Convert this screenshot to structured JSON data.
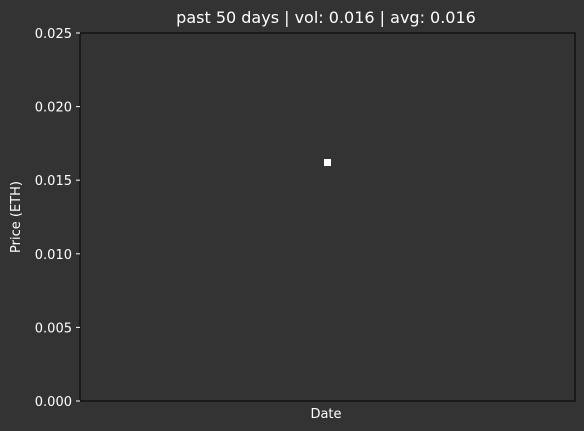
{
  "chart_data": {
    "type": "scatter",
    "title": "past 50 days | vol: 0.016 | avg: 0.016",
    "xlabel": "Date",
    "ylabel": "Price (ETH)",
    "ylim": [
      0,
      0.025
    ],
    "yticks": [
      "0.000",
      "0.005",
      "0.010",
      "0.015",
      "0.020",
      "0.025"
    ],
    "series": [
      {
        "x": [
          0.5
        ],
        "y": [
          0.0162
        ],
        "color": "#ffffff",
        "marker": "square"
      }
    ],
    "grid": false,
    "background": "#333333",
    "text_color": "#ffffff"
  }
}
